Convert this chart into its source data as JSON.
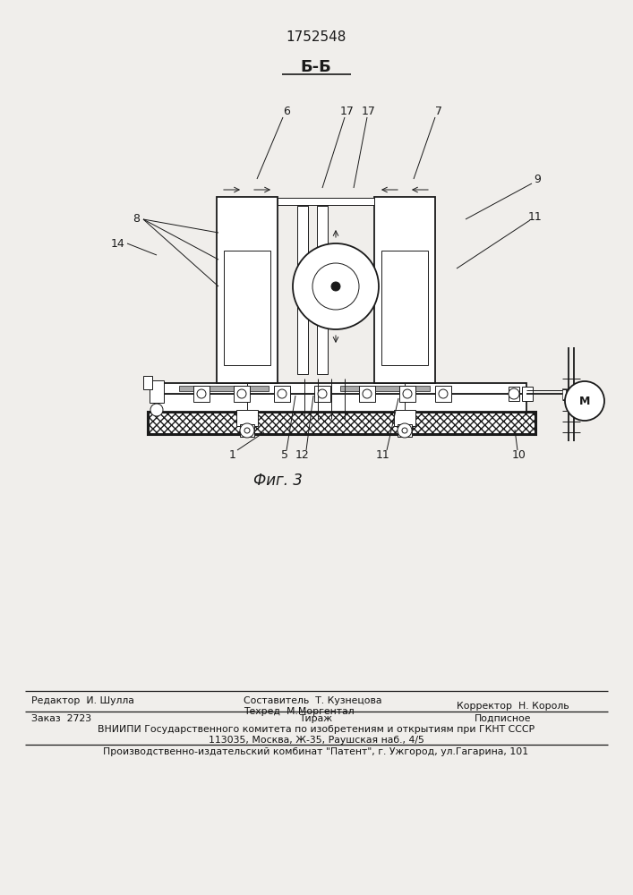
{
  "patent_number": "1752548",
  "section_label": "Б-Б",
  "fig_label": "Фиг. 3",
  "bg_color": "#f0eeeb",
  "line_color": "#1a1a1a",
  "footer_line1_left": "Редактор  И. Шулла",
  "footer_line1_center1": "Составитель  Т. Кузнецова",
  "footer_line1_center2": "Техред  М.Моргентал",
  "footer_line1_right": "Корректор  Н. Король",
  "footer_line2_left": "Заказ  2723",
  "footer_line2_center": "Тираж",
  "footer_line2_right": "Подписное",
  "footer_line3": "ВНИИПИ Государственного комитета по изобретениям и открытиям при ГКНТ СССР",
  "footer_line4": "113035, Москва, Ж-35, Раушская наб., 4/5",
  "footer_line5": "Производственно-издательский комбинат \"Патент\", г. Ужгород, ул.Гагарина, 101"
}
